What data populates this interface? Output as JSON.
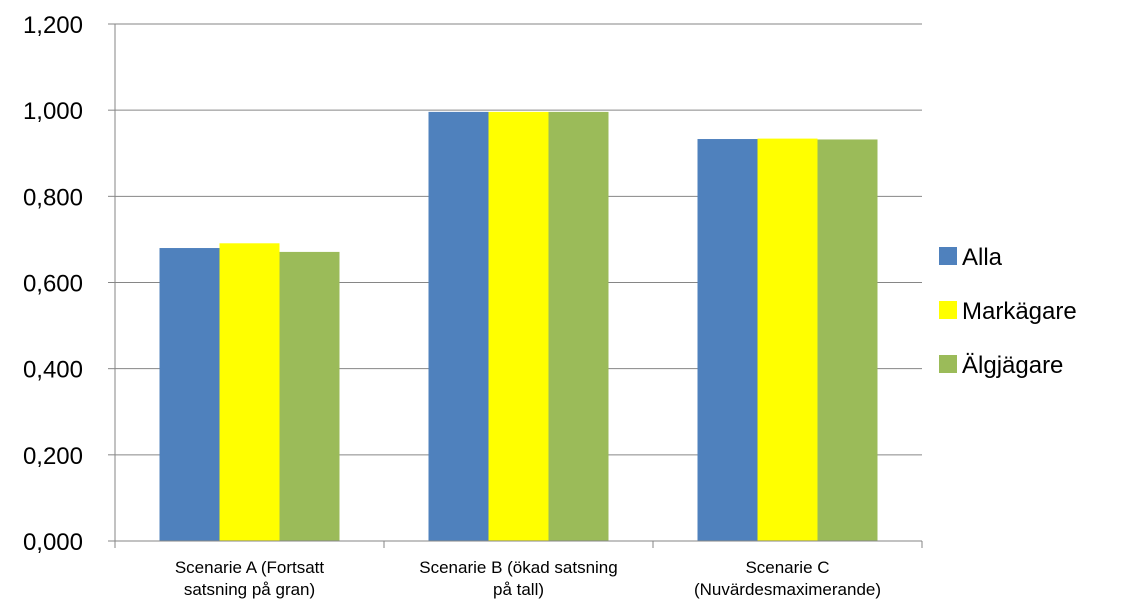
{
  "chart_data": {
    "type": "bar",
    "categories": [
      [
        "Scenarie A (Fortsatt",
        "satsning på gran)"
      ],
      [
        "Scenarie B (ökad satsning",
        "på tall)"
      ],
      [
        "Scenarie C",
        "(Nuvärdesmaximerande)"
      ]
    ],
    "series": [
      {
        "name": "Alla",
        "color": "#4f81bd",
        "values": [
          0.68,
          0.996,
          0.933
        ]
      },
      {
        "name": "Markägare",
        "color": "#ffff00",
        "values": [
          0.691,
          0.996,
          0.934
        ]
      },
      {
        "name": "Älgjägare",
        "color": "#9bbb59",
        "values": [
          0.671,
          0.996,
          0.932
        ]
      }
    ],
    "ylim": [
      0,
      1.2
    ],
    "yticks": [
      "0,000",
      "0,200",
      "0,400",
      "0,600",
      "0,800",
      "1,000",
      "1,200"
    ],
    "grid": true,
    "legend": "right",
    "title": "",
    "xlabel": "",
    "ylabel": ""
  }
}
